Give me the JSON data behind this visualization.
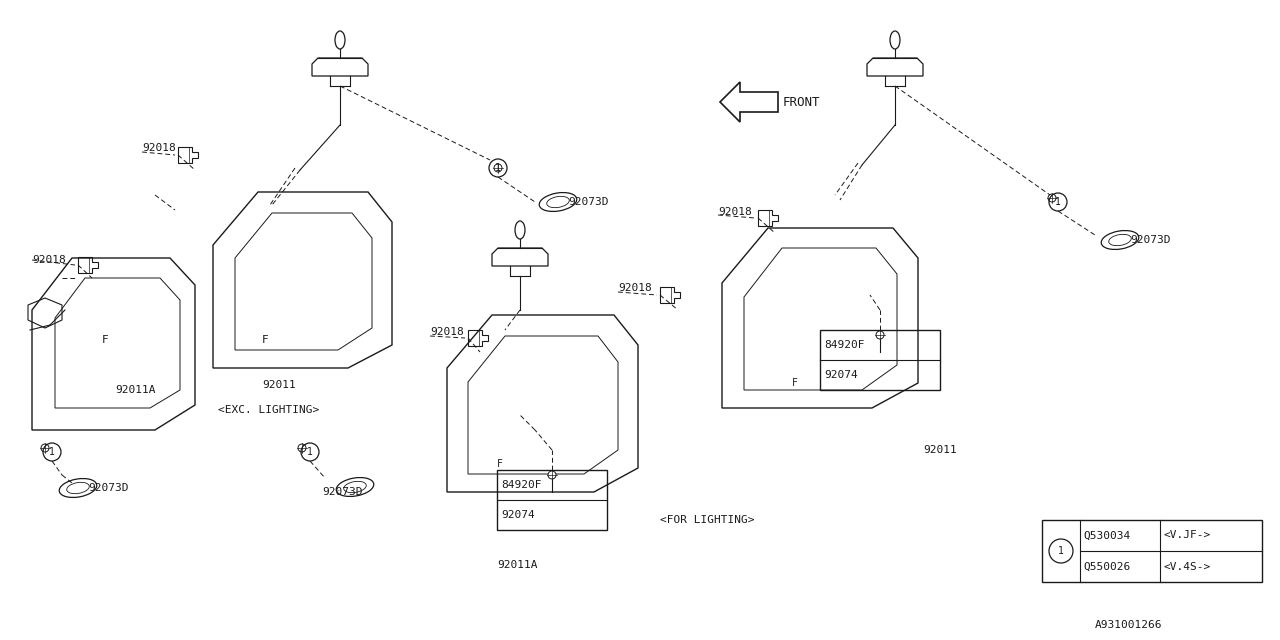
{
  "bg_color": "#ffffff",
  "line_color": "#1a1a1a",
  "text_color": "#1a1a1a",
  "diagram_ref": "A931001266",
  "legend": {
    "rows": [
      {
        "part": "Q530034",
        "desc": "<V.JF->"
      },
      {
        "part": "Q550026",
        "desc": "<V.4S->"
      }
    ]
  }
}
